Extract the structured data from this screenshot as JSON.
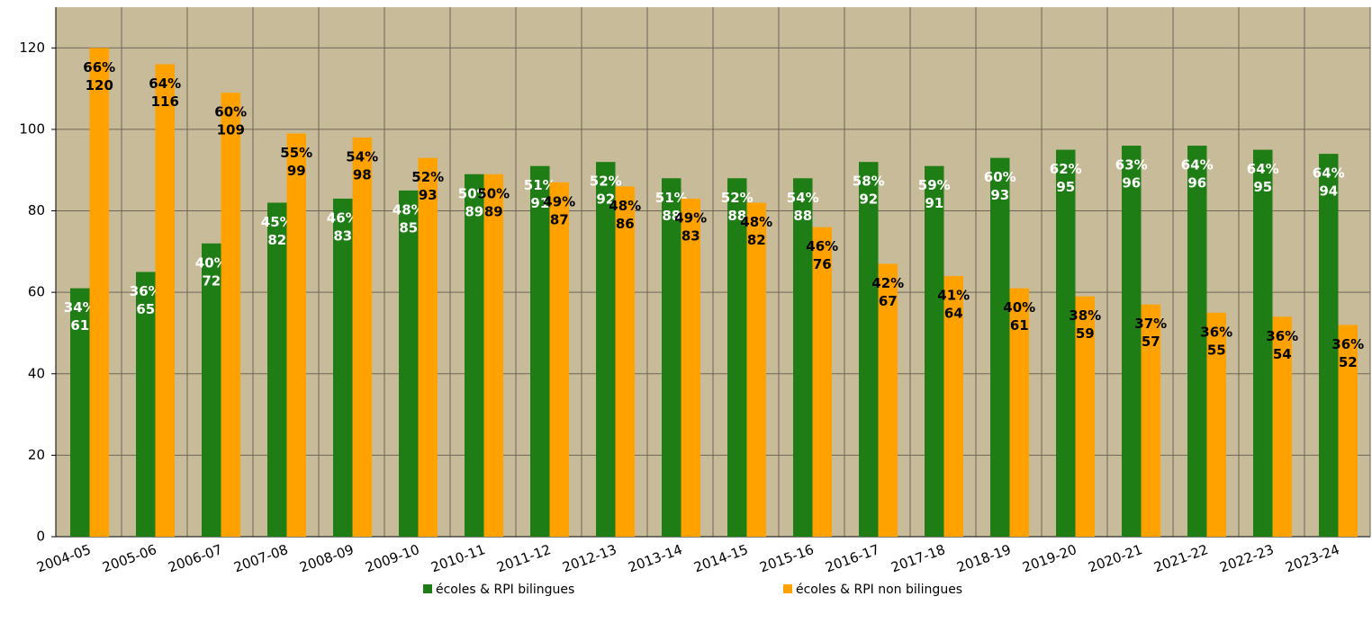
{
  "chart_data": {
    "type": "bar",
    "categories": [
      "2004-05",
      "2005-06",
      "2006-07",
      "2007-08",
      "2008-09",
      "2009-10",
      "2010-11",
      "2011-12",
      "2012-13",
      "2013-14",
      "2014-15",
      "2015-16",
      "2016-17",
      "2017-18",
      "2018-19",
      "2019-20",
      "2020-21",
      "2021-22",
      "2022-23",
      "2023-24"
    ],
    "series": [
      {
        "name": "écoles & RPI bilingues",
        "color": "#1e7d14",
        "label_color": "#ffffff",
        "values": [
          61,
          65,
          72,
          82,
          83,
          85,
          89,
          91,
          92,
          88,
          88,
          88,
          92,
          91,
          93,
          95,
          96,
          96,
          95,
          94
        ],
        "percent_labels": [
          "34%",
          "36%",
          "40%",
          "45%",
          "46%",
          "48%",
          "50%",
          "51%",
          "52%",
          "51%",
          "52%",
          "54%",
          "58%",
          "59%",
          "60%",
          "62%",
          "63%",
          "64%",
          "64%",
          "64%"
        ]
      },
      {
        "name": "écoles & RPI non bilingues",
        "color": "#ffa200",
        "label_color": "#000000",
        "values": [
          120,
          116,
          109,
          99,
          98,
          93,
          89,
          87,
          86,
          83,
          82,
          76,
          67,
          64,
          61,
          59,
          57,
          55,
          54,
          52
        ],
        "percent_labels": [
          "66%",
          "64%",
          "60%",
          "55%",
          "54%",
          "52%",
          "50%",
          "49%",
          "48%",
          "49%",
          "48%",
          "46%",
          "42%",
          "41%",
          "40%",
          "38%",
          "37%",
          "36%",
          "36%",
          "36%"
        ]
      }
    ],
    "ylim": [
      0,
      130
    ],
    "yticks": [
      0,
      20,
      40,
      60,
      80,
      100,
      120
    ],
    "grid": true,
    "legend": "bottom"
  }
}
